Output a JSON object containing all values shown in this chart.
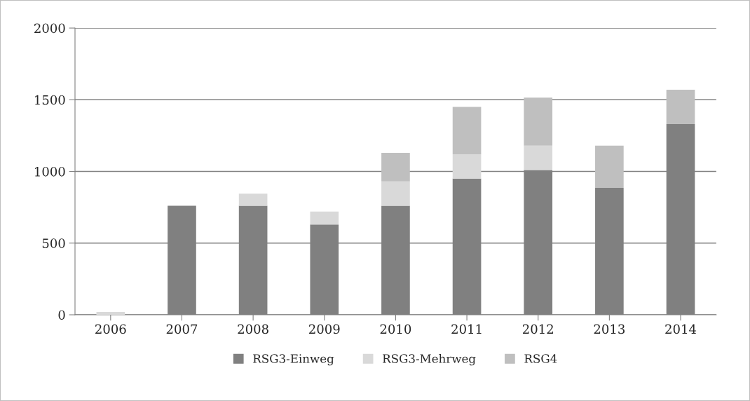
{
  "chart_data": {
    "type": "bar",
    "stacked": true,
    "categories": [
      "2006",
      "2007",
      "2008",
      "2009",
      "2010",
      "2011",
      "2012",
      "2013",
      "2014"
    ],
    "series": [
      {
        "name": "RSG3-Einweg",
        "color": "#808080",
        "values": [
          null,
          760,
          760,
          630,
          760,
          950,
          1010,
          885,
          1330
        ]
      },
      {
        "name": "RSG3-Mehrweg",
        "color": "#d9d9d9",
        "values": [
          20,
          null,
          85,
          90,
          170,
          170,
          170,
          null,
          null
        ]
      },
      {
        "name": "RSG4",
        "color": "#bfbfbf",
        "values": [
          null,
          null,
          null,
          null,
          200,
          330,
          335,
          295,
          240
        ]
      }
    ],
    "ylim": [
      0,
      2000
    ],
    "yticks": [
      0,
      500,
      1000,
      1500,
      2000
    ],
    "grid": "y",
    "legend": "bottom"
  }
}
